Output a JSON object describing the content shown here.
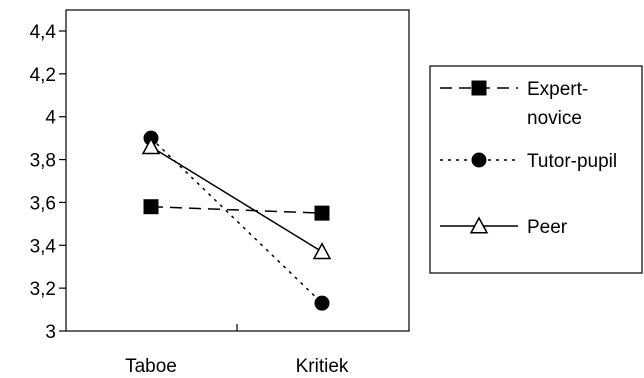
{
  "chart_data": {
    "type": "line",
    "categories": [
      "Taboe",
      "Kritiek"
    ],
    "ylim": [
      3,
      4.4
    ],
    "yticks": [
      "3",
      "3,2",
      "3,4",
      "3,6",
      "3,8",
      "4",
      "4,2",
      "4,4"
    ],
    "ytick_values": [
      3,
      3.2,
      3.4,
      3.6,
      3.8,
      4.0,
      4.2,
      4.4
    ],
    "grid": false,
    "legend_position": "right",
    "series": [
      {
        "name_lines": [
          "Expert-",
          "novice"
        ],
        "values": [
          3.58,
          3.55
        ],
        "line_style": "dashed",
        "marker": "square",
        "color": "#000000"
      },
      {
        "name_lines": [
          "Tutor-pupil"
        ],
        "values": [
          3.9,
          3.13
        ],
        "line_style": "dotted",
        "marker": "circle",
        "color": "#000000"
      },
      {
        "name_lines": [
          "Peer"
        ],
        "values": [
          3.86,
          3.37
        ],
        "line_style": "solid",
        "marker": "triangle",
        "color": "#000000"
      }
    ]
  }
}
